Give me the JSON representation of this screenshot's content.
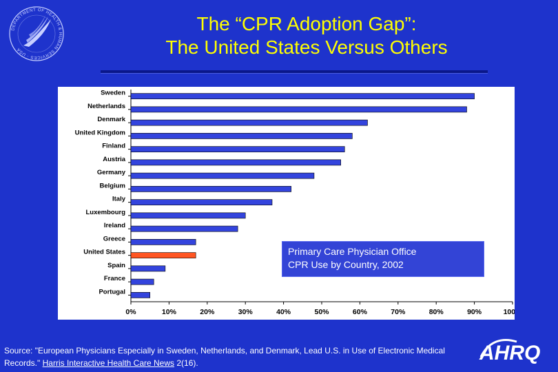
{
  "header": {
    "title_line1": "The “CPR Adoption Gap”:",
    "title_line2": "The United States Versus Others"
  },
  "chart_data": {
    "type": "bar",
    "orientation": "horizontal",
    "title": "Primary Care Physician Office CPR Use by Country, 2002",
    "categories": [
      "Sweden",
      "Netherlands",
      "Denmark",
      "United Kingdom",
      "Finland",
      "Austria",
      "Germany",
      "Belgium",
      "Italy",
      "Luxembourg",
      "Ireland",
      "Greece",
      "United States",
      "Spain",
      "France",
      "Portugal"
    ],
    "values": [
      90,
      88,
      62,
      58,
      56,
      55,
      48,
      42,
      37,
      30,
      28,
      17,
      17,
      9,
      6,
      5
    ],
    "highlight_category": "United States",
    "xlim": [
      0,
      100
    ],
    "xticks": [
      "0%",
      "10%",
      "20%",
      "30%",
      "40%",
      "50%",
      "60%",
      "70%",
      "80%",
      "90%",
      "100%"
    ],
    "xlabel": "",
    "ylabel": "",
    "grid": false,
    "colors": {
      "bar": "#3344dd",
      "highlight": "#ff5522",
      "panel": "#ffffff"
    }
  },
  "caption": {
    "line1": "Primary Care Physician Office",
    "line2": "CPR Use by Country, 2002"
  },
  "footer": {
    "source_prefix": "Source:  \"European Physicians Especially in Sweden, Netherlands, and Denmark, Lead U.S. in Use of Electronic Medical Records.\" ",
    "source_link": "Harris Interactive Health Care News",
    "source_suffix": " 2(16)."
  },
  "logos": {
    "hhs_seal": "DEPARTMENT OF HEALTH & HUMAN SERVICES · USA",
    "ahrq": "AHRQ"
  },
  "colors": {
    "background": "#1e33cc",
    "title": "#ffff00",
    "text": "#ffffff"
  }
}
